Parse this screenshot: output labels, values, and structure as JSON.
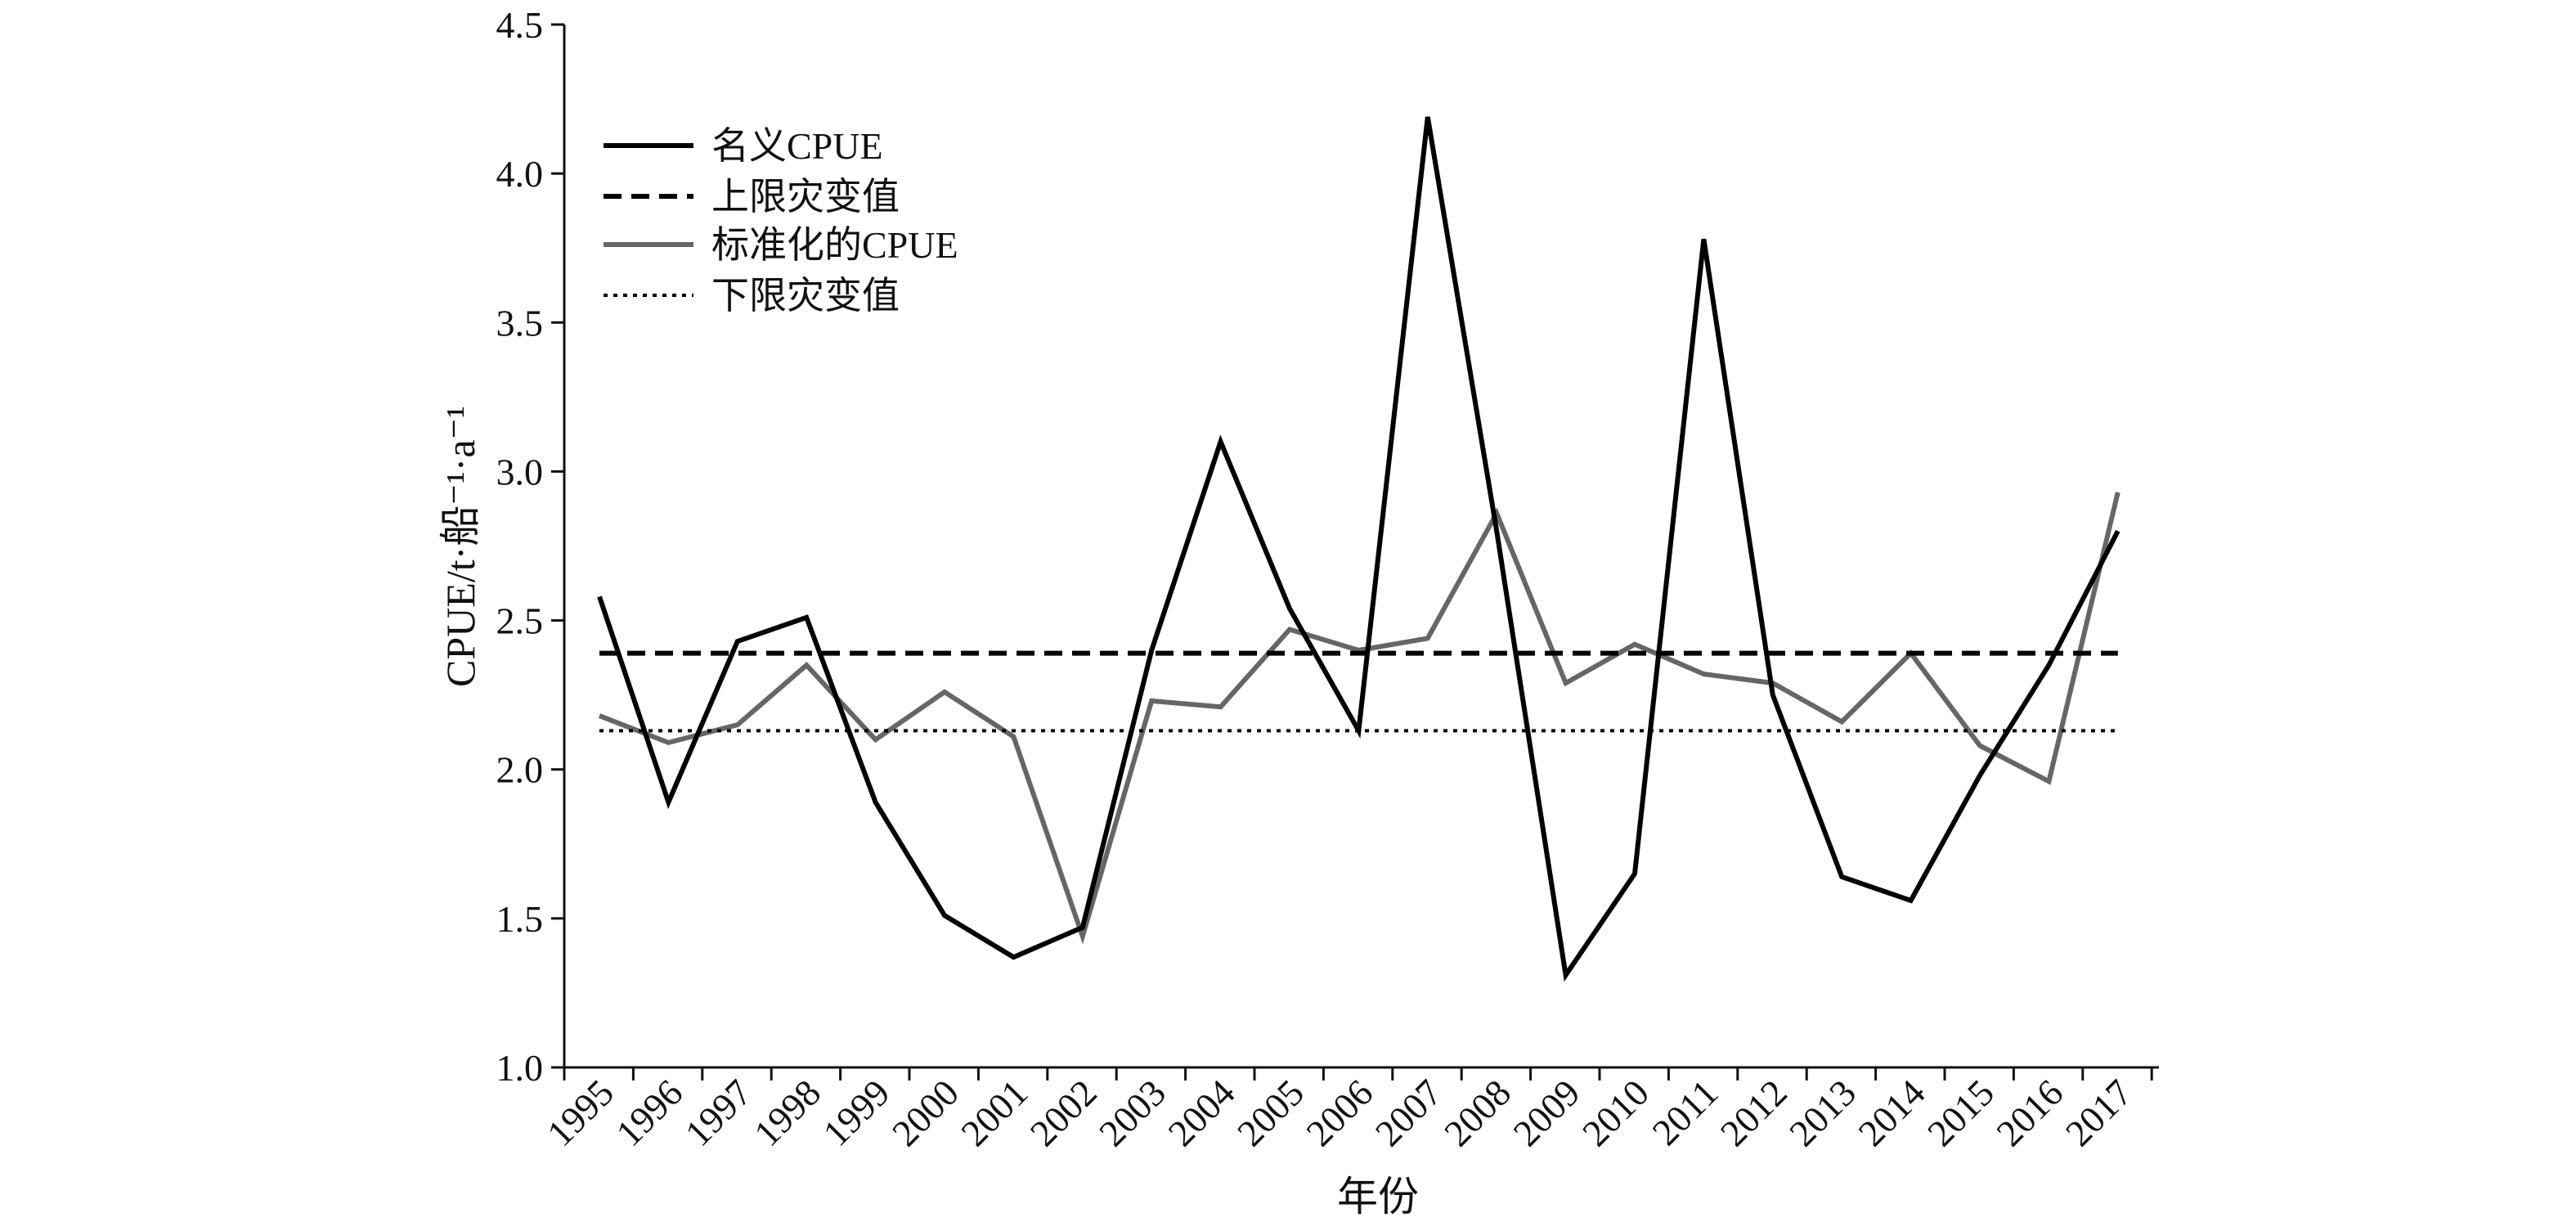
{
  "chart_data": {
    "type": "line",
    "title": "",
    "xlabel": "年份",
    "ylabel": "CPUE/t·船⁻¹·a⁻¹",
    "ylim": [
      1.0,
      4.5
    ],
    "yticks": [
      "1.0",
      "1.5",
      "2.0",
      "2.5",
      "3.0",
      "3.5",
      "4.0",
      "4.5"
    ],
    "categories": [
      "1995",
      "1996",
      "1997",
      "1998",
      "1999",
      "2000",
      "2001",
      "2002",
      "2003",
      "2004",
      "2005",
      "2006",
      "2007",
      "2008",
      "2009",
      "2010",
      "2011",
      "2012",
      "2013",
      "2014",
      "2015",
      "2016",
      "2017"
    ],
    "grid": false,
    "legend_position": "top-left",
    "series": [
      {
        "name": "名义CPUE",
        "style": "solid",
        "color": "#000000",
        "values": [
          2.58,
          1.89,
          2.43,
          2.51,
          1.89,
          1.51,
          1.37,
          1.47,
          2.4,
          3.1,
          2.54,
          2.13,
          4.19,
          2.8,
          1.31,
          1.65,
          3.78,
          2.25,
          1.64,
          1.56,
          1.98,
          2.35,
          2.8
        ]
      },
      {
        "name": "上限灾变值",
        "style": "dashed",
        "color": "#000000",
        "values": [
          2.39,
          2.39,
          2.39,
          2.39,
          2.39,
          2.39,
          2.39,
          2.39,
          2.39,
          2.39,
          2.39,
          2.39,
          2.39,
          2.39,
          2.39,
          2.39,
          2.39,
          2.39,
          2.39,
          2.39,
          2.39,
          2.39,
          2.39
        ]
      },
      {
        "name": "标准化的CPUE",
        "style": "solid",
        "color": "#666666",
        "values": [
          2.18,
          2.09,
          2.15,
          2.35,
          2.1,
          2.26,
          2.11,
          1.44,
          2.23,
          2.21,
          2.47,
          2.4,
          2.44,
          2.86,
          2.29,
          2.42,
          2.32,
          2.29,
          2.16,
          2.39,
          2.08,
          1.96,
          2.93
        ]
      },
      {
        "name": "下限灾变值",
        "style": "dotted",
        "color": "#000000",
        "values": [
          2.13,
          2.13,
          2.13,
          2.13,
          2.13,
          2.13,
          2.13,
          2.13,
          2.13,
          2.13,
          2.13,
          2.13,
          2.13,
          2.13,
          2.13,
          2.13,
          2.13,
          2.13,
          2.13,
          2.13,
          2.13,
          2.13,
          2.13
        ]
      }
    ]
  }
}
